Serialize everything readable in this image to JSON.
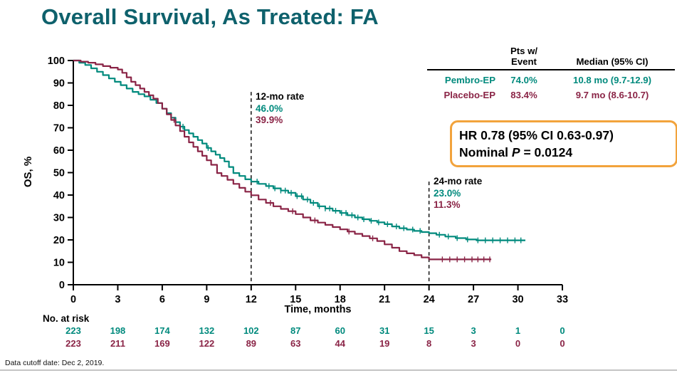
{
  "title": "Overall Survival, As Treated: FA",
  "footer": "Data cutoff date: Dec 2, 2019.",
  "colors": {
    "pembro": "#008a7d",
    "placebo": "#8a2446",
    "title": "#0e616c",
    "hr_box_border": "#f2a33c"
  },
  "axes": {
    "y_label": "OS, %",
    "x_label": "Time, months",
    "y_ticks": [
      100,
      90,
      80,
      70,
      60,
      50,
      40,
      30,
      20,
      10,
      0
    ],
    "x_ticks": [
      0,
      3,
      6,
      9,
      12,
      15,
      18,
      21,
      24,
      27,
      30,
      33
    ]
  },
  "annotations": {
    "rate12": {
      "label": "12-mo rate",
      "pembro": "46.0%",
      "placebo": "39.9%"
    },
    "rate24": {
      "label": "24-mo rate",
      "pembro": "23.0%",
      "placebo": "11.3%"
    }
  },
  "summary_table": {
    "header_event": "Pts w/\nEvent",
    "header_median": "Median (95% CI)",
    "rows": [
      {
        "name": "Pembro-EP",
        "event": "74.0%",
        "median": "10.8 mo (9.7-12.9)"
      },
      {
        "name": "Placebo-EP",
        "event": "83.4%",
        "median": "9.7 mo (8.6-10.7)"
      }
    ]
  },
  "hr_box": {
    "line1": "HR 0.78 (95% CI 0.63-0.97)",
    "line2_prefix": "Nominal ",
    "line2_var": "P",
    "line2_suffix": " = 0.0124"
  },
  "risk_table": {
    "label": "No. at risk",
    "rows": [
      {
        "series": "Pembro-EP",
        "color": "#008a7d",
        "counts": [
          223,
          198,
          174,
          132,
          102,
          87,
          60,
          31,
          15,
          3,
          1,
          0
        ]
      },
      {
        "series": "Placebo-EP",
        "color": "#8a2446",
        "counts": [
          223,
          211,
          169,
          122,
          89,
          63,
          44,
          19,
          8,
          3,
          0,
          0
        ]
      }
    ]
  },
  "chart_data": {
    "type": "line",
    "subtype": "kaplan-meier-step",
    "title": "Overall Survival, As Treated: FA",
    "xlabel": "Time, months",
    "ylabel": "OS, %",
    "xlim": [
      0,
      33
    ],
    "ylim": [
      0,
      100
    ],
    "x_ticks": [
      0,
      3,
      6,
      9,
      12,
      15,
      18,
      21,
      24,
      27,
      30,
      33
    ],
    "y_ticks": [
      0,
      10,
      20,
      30,
      40,
      50,
      60,
      70,
      80,
      90,
      100
    ],
    "grid": false,
    "legend_position": "table-top-right",
    "dashed_lines": [
      {
        "x": 12,
        "top": 86
      },
      {
        "x": 24,
        "top": 46
      }
    ],
    "series": [
      {
        "name": "Pembro-EP",
        "color": "#008a7d",
        "pts_with_event": "74.0%",
        "median_mo": 10.8,
        "median_ci": "9.7-12.9",
        "rate_12mo": 46.0,
        "rate_24mo": 23.0,
        "points": [
          [
            0,
            100
          ],
          [
            0.4,
            99
          ],
          [
            0.8,
            98
          ],
          [
            1.2,
            96.5
          ],
          [
            1.6,
            95
          ],
          [
            2,
            93.5
          ],
          [
            2.4,
            92
          ],
          [
            2.8,
            90.5
          ],
          [
            3.2,
            89
          ],
          [
            3.6,
            87.5
          ],
          [
            4,
            86
          ],
          [
            4.4,
            85
          ],
          [
            4.8,
            84
          ],
          [
            5.2,
            82.5
          ],
          [
            5.6,
            81
          ],
          [
            6,
            78.5
          ],
          [
            6.3,
            76.5
          ],
          [
            6.6,
            74.5
          ],
          [
            6.9,
            72.5
          ],
          [
            7.2,
            70.5
          ],
          [
            7.5,
            69
          ],
          [
            7.8,
            67.5
          ],
          [
            8.1,
            66
          ],
          [
            8.4,
            64.5
          ],
          [
            8.7,
            63
          ],
          [
            9,
            61
          ],
          [
            9.3,
            59.5
          ],
          [
            9.6,
            58
          ],
          [
            9.9,
            56.5
          ],
          [
            10.2,
            55
          ],
          [
            10.5,
            52.5
          ],
          [
            10.8,
            49.8
          ],
          [
            11.2,
            48.5
          ],
          [
            11.6,
            47
          ],
          [
            12,
            46
          ],
          [
            12.5,
            45
          ],
          [
            13,
            44
          ],
          [
            13.5,
            43
          ],
          [
            14,
            42
          ],
          [
            14.5,
            41
          ],
          [
            15,
            39.5
          ],
          [
            15.5,
            38
          ],
          [
            16,
            36.5
          ],
          [
            16.5,
            35
          ],
          [
            17,
            34
          ],
          [
            17.5,
            33
          ],
          [
            18,
            32
          ],
          [
            18.5,
            31
          ],
          [
            19,
            30
          ],
          [
            19.5,
            29.2
          ],
          [
            20,
            28.5
          ],
          [
            20.5,
            27.8
          ],
          [
            21,
            27
          ],
          [
            21.5,
            26
          ],
          [
            22,
            25.2
          ],
          [
            22.5,
            24.6
          ],
          [
            23,
            24
          ],
          [
            23.5,
            23.5
          ],
          [
            24,
            23
          ],
          [
            24.5,
            22.3
          ],
          [
            25.1,
            21.5
          ],
          [
            25.8,
            20.8
          ],
          [
            26.5,
            20.2
          ],
          [
            27.2,
            19.8
          ],
          [
            30.5,
            19.8
          ]
        ],
        "censors": [
          7.4,
          9.1,
          12.4,
          13.2,
          13.6,
          14,
          14.3,
          14.7,
          15.1,
          15.4,
          15.8,
          16.2,
          16.6,
          17,
          17.3,
          17.7,
          18.1,
          18.4,
          18.8,
          19.2,
          19.6,
          20.1,
          20.6,
          21.2,
          21.8,
          22.3,
          22.9,
          23.4,
          24.7,
          25.3,
          25.9,
          26.6,
          27.3,
          27.8,
          28.3,
          28.8,
          29.3,
          29.8,
          30.2
        ]
      },
      {
        "name": "Placebo-EP",
        "color": "#8a2446",
        "pts_with_event": "83.4%",
        "median_mo": 9.7,
        "median_ci": "8.6-10.7",
        "rate_12mo": 39.9,
        "rate_24mo": 11.3,
        "points": [
          [
            0,
            100
          ],
          [
            0.5,
            99.5
          ],
          [
            1,
            99
          ],
          [
            1.5,
            98.3
          ],
          [
            2,
            97.5
          ],
          [
            2.5,
            96.8
          ],
          [
            3,
            96
          ],
          [
            3.3,
            94.5
          ],
          [
            3.6,
            92.5
          ],
          [
            3.9,
            90.5
          ],
          [
            4.2,
            89
          ],
          [
            4.5,
            87.5
          ],
          [
            4.8,
            86
          ],
          [
            5.1,
            84.5
          ],
          [
            5.4,
            83
          ],
          [
            5.7,
            81
          ],
          [
            6,
            78.5
          ],
          [
            6.3,
            76
          ],
          [
            6.6,
            73.5
          ],
          [
            6.9,
            71
          ],
          [
            7.2,
            68.5
          ],
          [
            7.5,
            66
          ],
          [
            7.8,
            63.5
          ],
          [
            8.1,
            61.5
          ],
          [
            8.4,
            59.5
          ],
          [
            8.7,
            57.5
          ],
          [
            9,
            55.5
          ],
          [
            9.3,
            53.5
          ],
          [
            9.7,
            49.8
          ],
          [
            10,
            48.5
          ],
          [
            10.4,
            46.8
          ],
          [
            10.8,
            45
          ],
          [
            11.2,
            43.2
          ],
          [
            11.6,
            41.5
          ],
          [
            12,
            39.9
          ],
          [
            12.5,
            38
          ],
          [
            13,
            36.5
          ],
          [
            13.5,
            35
          ],
          [
            14,
            33.8
          ],
          [
            14.5,
            32.8
          ],
          [
            15,
            31.5
          ],
          [
            15.5,
            30
          ],
          [
            16,
            28.7
          ],
          [
            16.5,
            27.7
          ],
          [
            17,
            26.7
          ],
          [
            17.5,
            25.7
          ],
          [
            18,
            24.7
          ],
          [
            18.5,
            23.7
          ],
          [
            19,
            22.7
          ],
          [
            19.5,
            21.7
          ],
          [
            20,
            20.7
          ],
          [
            20.5,
            19.5
          ],
          [
            21,
            18
          ],
          [
            21.5,
            16.5
          ],
          [
            22,
            15
          ],
          [
            22.5,
            14
          ],
          [
            23,
            13.2
          ],
          [
            23.5,
            12.2
          ],
          [
            24,
            11.3
          ],
          [
            28.2,
            11.3
          ]
        ],
        "censors": [
          6.8,
          13.3,
          14.8,
          16.3,
          18.6,
          20.2,
          24.9,
          25.4,
          25.9,
          26.4,
          26.9,
          27.3,
          27.7,
          28.1
        ]
      }
    ]
  }
}
